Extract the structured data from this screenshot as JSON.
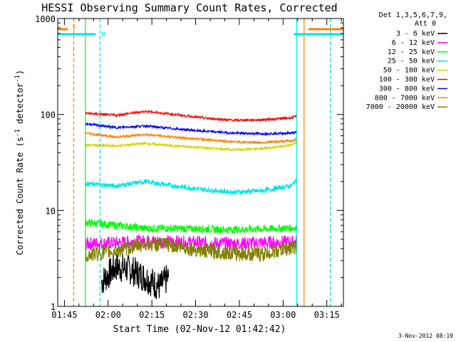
{
  "chart_data": {
    "type": "line",
    "title": "HESSI Observing Summary Count Rates, Corrected",
    "xlabel": "Start Time (02-Nov-12 01:42:42)",
    "ylabel": "Corrected Count Rate (s",
    "ylabel_sup1": "-1",
    "ylabel_mid": " detector",
    "ylabel_sup2": "-1",
    "ylabel_end": ")",
    "yscale": "log",
    "ylim": [
      1,
      1000
    ],
    "xlim_minutes": [
      0,
      98
    ],
    "x_tick_labels": [
      {
        "label": "01:45",
        "minute": 2.3
      },
      {
        "label": "02:00",
        "minute": 17.3
      },
      {
        "label": "02:15",
        "minute": 32.3
      },
      {
        "label": "02:30",
        "minute": 47.3
      },
      {
        "label": "02:45",
        "minute": 62.3
      },
      {
        "label": "03:00",
        "minute": 77.3
      },
      {
        "label": "03:15",
        "minute": 92.3
      }
    ],
    "y_tick_labels": [
      {
        "label": "1",
        "value": 1
      },
      {
        "label": "10",
        "value": 10
      },
      {
        "label": "100",
        "value": 100
      },
      {
        "label": "1000",
        "value": 1000
      }
    ],
    "legend_header": [
      "Det 1,3,5,6,7,9,",
      "Att 0"
    ],
    "data_range_minutes": [
      9.5,
      82
    ],
    "series": [
      {
        "name": "3 - 6 keV",
        "color": "#000000",
        "x": [
          15,
          20,
          25,
          30,
          35,
          38
        ],
        "values": [
          1.8,
          2.6,
          2.4,
          2.0,
          1.6,
          2.0
        ]
      },
      {
        "name": "6 - 12 keV",
        "color": "#ff00ff",
        "x": [
          9.5,
          20,
          30,
          40,
          50,
          60,
          70,
          82
        ],
        "values": [
          4.5,
          4.6,
          4.8,
          4.7,
          4.6,
          4.5,
          4.6,
          4.7
        ]
      },
      {
        "name": "12 - 25 keV",
        "color": "#00ff00",
        "x": [
          9.5,
          20,
          30,
          40,
          50,
          60,
          70,
          82
        ],
        "values": [
          7.5,
          7.0,
          6.5,
          6.5,
          6.4,
          6.3,
          6.4,
          6.6
        ]
      },
      {
        "name": "25 - 50 keV",
        "color": "#00e5e5",
        "x": [
          9.5,
          20,
          30,
          40,
          50,
          60,
          70,
          80,
          82
        ],
        "values": [
          19,
          18,
          20,
          18,
          16.5,
          15.5,
          16,
          18,
          21
        ]
      },
      {
        "name": "50 - 100 keV",
        "color": "#d4d400",
        "x": [
          9.5,
          20,
          30,
          40,
          50,
          60,
          70,
          80,
          82
        ],
        "values": [
          48,
          47,
          50,
          47,
          45,
          43,
          44,
          48,
          52
        ]
      },
      {
        "name": "100 - 300 keV",
        "color": "#ff0000",
        "x": [
          9.5,
          20,
          30,
          40,
          50,
          60,
          70,
          80,
          82
        ],
        "values": [
          103,
          98,
          108,
          100,
          92,
          87,
          88,
          92,
          96
        ]
      },
      {
        "name": "300 - 800 keV",
        "color": "#0000ff",
        "x": [
          9.5,
          20,
          30,
          40,
          50,
          60,
          70,
          80,
          82
        ],
        "values": [
          80,
          73,
          76,
          71,
          67,
          64,
          63,
          64,
          65
        ]
      },
      {
        "name": "800 - 7000 keV",
        "color": "#ff8000",
        "x": [
          9.5,
          20,
          30,
          40,
          50,
          60,
          70,
          80,
          82
        ],
        "values": [
          64,
          58,
          62,
          58,
          55,
          52,
          51,
          53,
          55
        ]
      },
      {
        "name": "7000 - 20000 keV",
        "color": "#808000",
        "x": [
          9.5,
          20,
          30,
          40,
          50,
          60,
          70,
          82
        ],
        "values": [
          3.4,
          3.8,
          4.5,
          4.3,
          3.8,
          3.6,
          3.5,
          4.2
        ]
      }
    ],
    "flags": [
      {
        "label": "S",
        "color": "#ff8000",
        "segments": [
          [
            0,
            3.5
          ],
          [
            86,
            98
          ]
        ]
      },
      {
        "label": "N",
        "color": "#00e5e5",
        "segments": [
          [
            0,
            13
          ],
          [
            81,
            98
          ]
        ]
      }
    ],
    "vlines": [
      {
        "minute": 9.5,
        "color": "#00ff00",
        "style": "solid"
      },
      {
        "minute": 82,
        "color": "#00e5e5",
        "style": "solid"
      },
      {
        "minute": 84.5,
        "color": "#ff8000",
        "style": "solid"
      },
      {
        "minute": 5.5,
        "color": "#ff8000",
        "style": "dashed"
      },
      {
        "minute": 14.5,
        "color": "#00e5e5",
        "style": "dashed"
      },
      {
        "minute": 93.5,
        "color": "#ff8000",
        "style": "dashed"
      },
      {
        "minute": 93.5,
        "color": "#00e5e5",
        "style": "dashed"
      }
    ],
    "timestamp": "3-Nov-2012 08:19"
  }
}
